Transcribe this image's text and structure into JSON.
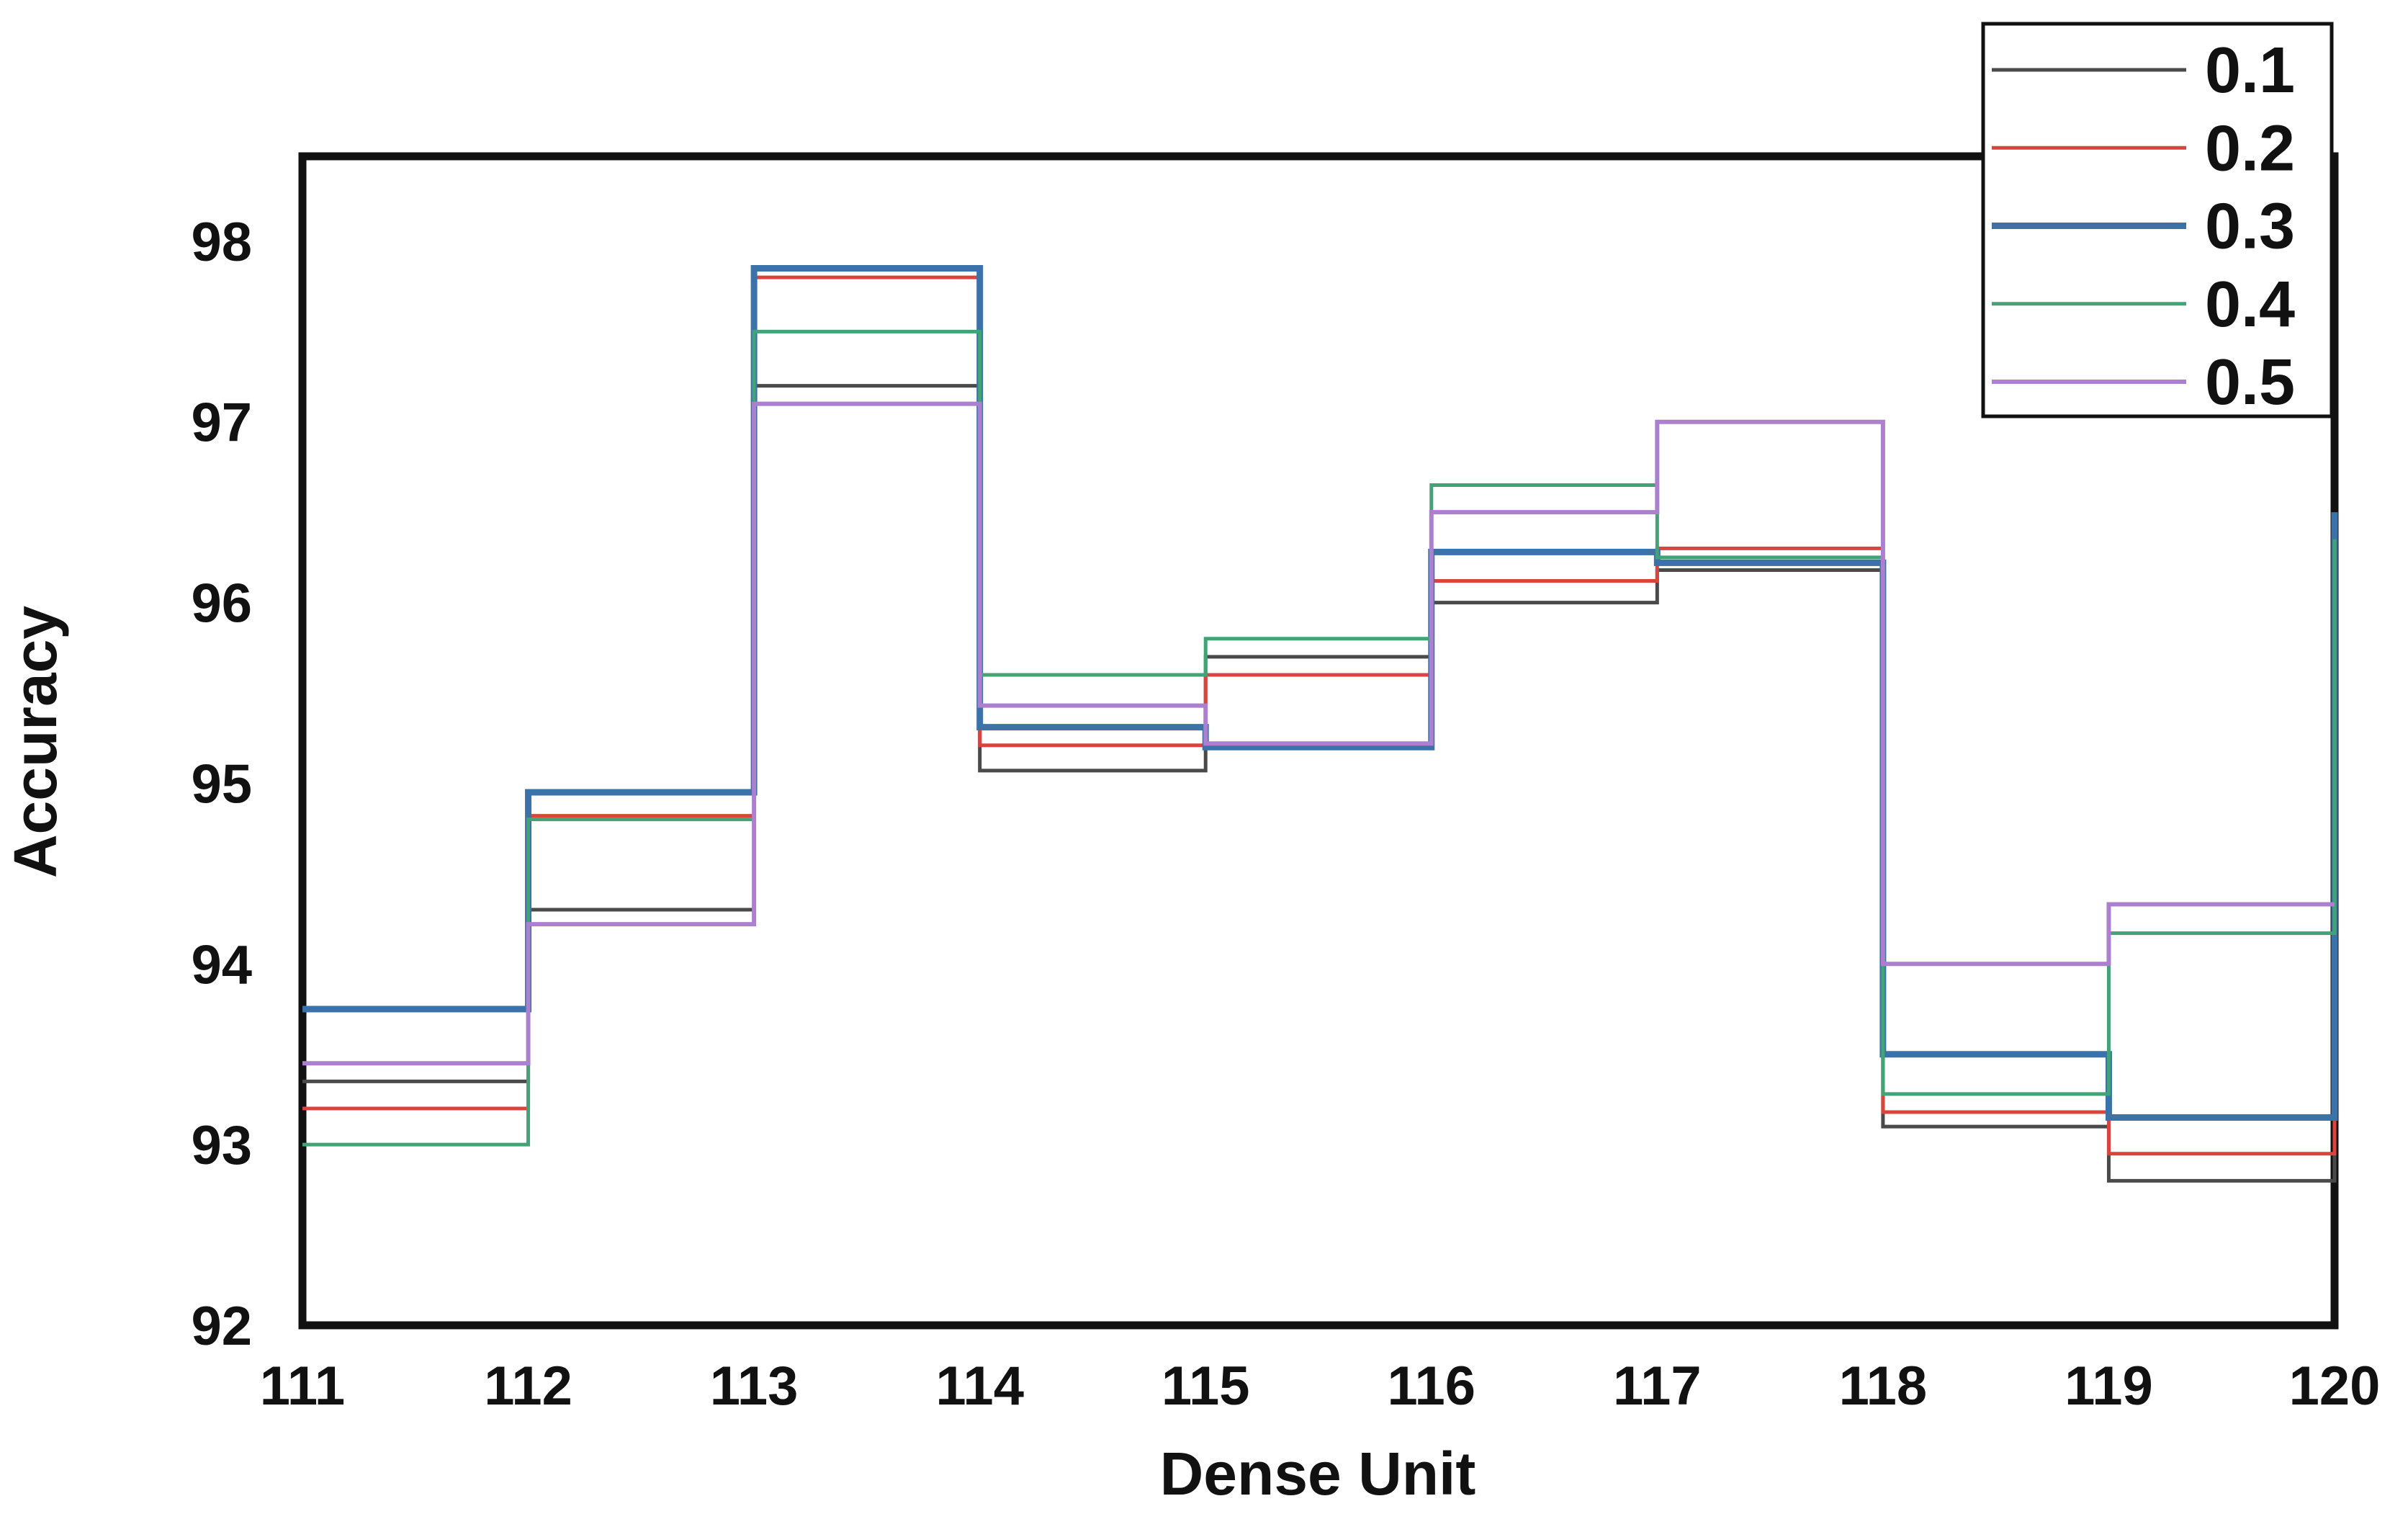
{
  "figure": {
    "background": "#ffffff",
    "axis_color": "#111111"
  },
  "chart_data": {
    "type": "line",
    "subtype": "step-post",
    "title": "",
    "xlabel": "Dense Unit",
    "ylabel": "Accuracy",
    "xlim": [
      111,
      120
    ],
    "ylim": [
      92,
      98.47
    ],
    "grid": false,
    "legend_position": "top-right",
    "x_ticks": [
      111,
      112,
      113,
      114,
      115,
      116,
      117,
      118,
      119,
      120
    ],
    "y_ticks": [
      92,
      93,
      94,
      95,
      96,
      97,
      98
    ],
    "x": [
      111,
      112,
      113,
      114,
      115,
      116,
      117,
      118,
      119,
      120
    ],
    "series": [
      {
        "name": "0.1",
        "color": "#4a4a4a",
        "linewidth": 5,
        "values": [
          93.35,
          94.3,
          97.2,
          95.07,
          95.7,
          96.0,
          96.18,
          93.1,
          92.8,
          96.0
        ]
      },
      {
        "name": "0.2",
        "color": "#d9453e",
        "linewidth": 5,
        "values": [
          93.2,
          94.82,
          97.8,
          95.21,
          95.6,
          96.12,
          96.3,
          93.18,
          92.95,
          96.1
        ]
      },
      {
        "name": "0.3",
        "color": "#3b72aa",
        "linewidth": 9,
        "values": [
          93.75,
          94.95,
          97.85,
          95.31,
          95.2,
          96.28,
          96.22,
          93.5,
          93.15,
          96.5
        ]
      },
      {
        "name": "0.4",
        "color": "#41a376",
        "linewidth": 5,
        "values": [
          93.0,
          94.8,
          97.5,
          95.6,
          95.8,
          96.65,
          96.25,
          93.28,
          94.17,
          96.35
        ]
      },
      {
        "name": "0.5",
        "color": "#ab80cf",
        "linewidth": 6,
        "values": [
          93.45,
          94.22,
          97.1,
          95.43,
          95.22,
          96.5,
          97.0,
          94.0,
          94.33,
          94.33
        ]
      }
    ],
    "legend_labels": [
      "0.1",
      "0.2",
      "0.3",
      "0.4",
      "0.5"
    ]
  }
}
